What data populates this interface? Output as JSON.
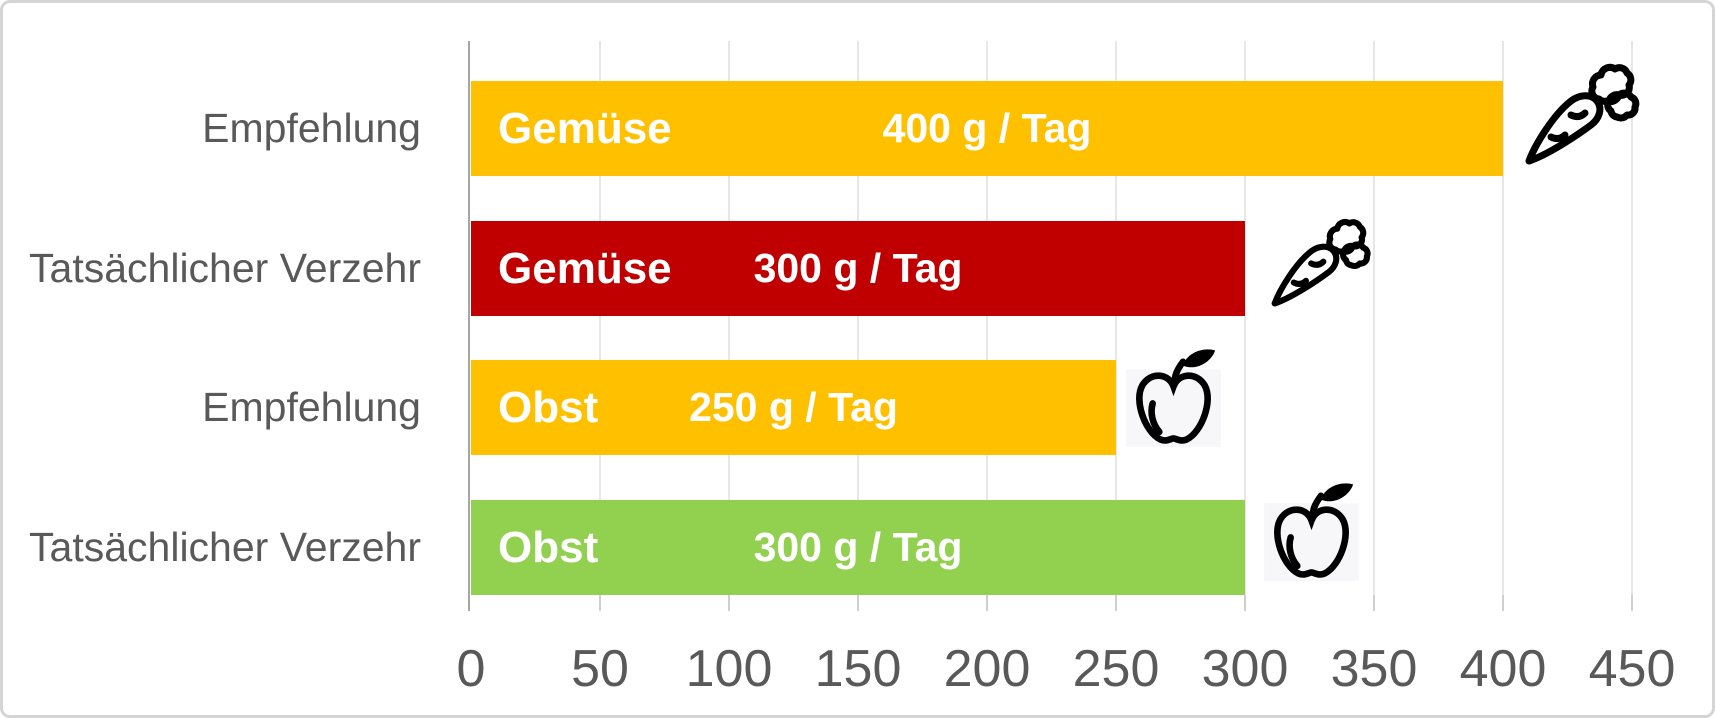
{
  "chart_data": {
    "type": "bar",
    "orientation": "horizontal",
    "title": "",
    "xlabel": "",
    "ylabel": "",
    "unit": "g / Tag",
    "grid": true,
    "rows": [
      {
        "category": "Empfehlung",
        "item": "Gemüse",
        "value": 400,
        "label": "400 g / Tag",
        "color": "#FFC000",
        "icon": "carrot"
      },
      {
        "category": "Tatsächlicher Verzehr",
        "item": "Gemüse",
        "value": 300,
        "label": "300 g / Tag",
        "color": "#C00000",
        "icon": "carrot"
      },
      {
        "category": "Empfehlung",
        "item": "Obst",
        "value": 250,
        "label": "250 g / Tag",
        "color": "#FFC000",
        "icon": "apple"
      },
      {
        "category": "Tatsächlicher Verzehr",
        "item": "Obst",
        "value": 300,
        "label": "300 g / Tag",
        "color": "#92D050",
        "icon": "apple"
      }
    ],
    "x_axis": {
      "min": 0,
      "max": 450,
      "tick_interval": 50,
      "tick_labels": [
        "0",
        "50",
        "100",
        "150",
        "200",
        "250",
        "300",
        "350",
        "400",
        "450"
      ]
    }
  },
  "colors": {
    "recommendation_orange": "#FFC000",
    "actual_red": "#C00000",
    "actual_green": "#92D050",
    "axis_text": "#595959",
    "gridline": "#E7E7E7"
  }
}
